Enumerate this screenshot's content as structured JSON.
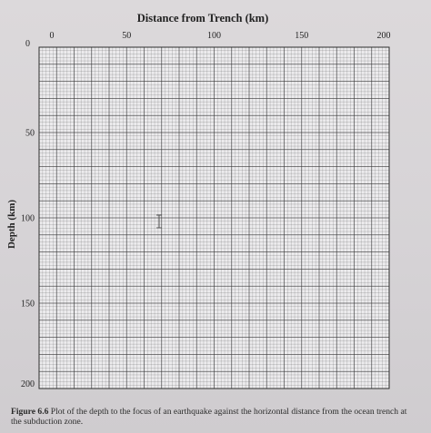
{
  "chart_data": {
    "type": "scatter",
    "title": "Distance from Trench (km)",
    "xlabel": "Distance from Trench (km)",
    "ylabel": "Depth (km)",
    "x_ticks": [
      "0",
      "50",
      "100",
      "150",
      "200"
    ],
    "x_tick_values": [
      0,
      50,
      100,
      150,
      200
    ],
    "y_ticks": [
      "0",
      "50",
      "100",
      "150",
      "200"
    ],
    "y_tick_values": [
      0,
      50,
      100,
      150,
      200
    ],
    "xlim": [
      0,
      200
    ],
    "ylim": [
      0,
      200
    ],
    "y_inverted": true,
    "grid": true,
    "series": [],
    "colors": {
      "grid": "#3a3a3a",
      "text": "#222222"
    }
  },
  "caption": {
    "label": "Figure 6.6",
    "text": " Plot of the depth to the focus of an earthquake against the horizontal distance from the ocean trench at the subduction zone."
  }
}
